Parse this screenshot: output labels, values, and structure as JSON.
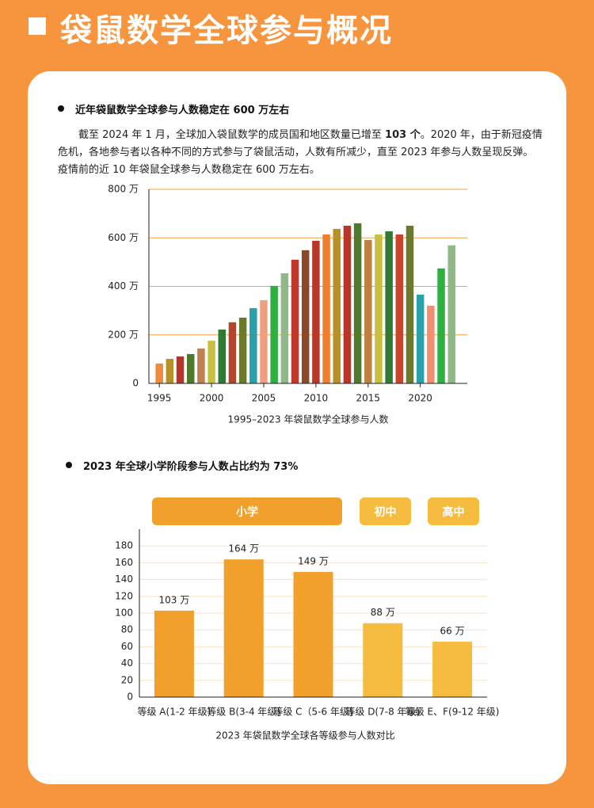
{
  "header": {
    "title": "袋鼠数学全球参与概况"
  },
  "section1": {
    "heading": "近年袋鼠数学全球参与人数稳定在 600 万左右",
    "paragraph": [
      "截至 2024 年 1 月，全球加入袋鼠数学的成员国和地区数量已增至 ",
      "103 个",
      "。2020 年，由于新冠疫情危机，各地参与者以各种不同的方式参与了袋鼠活动，人数有所减少，直至 2023 年参与人数呈现反弹。疫情前的近 10 年袋鼠全球参与人数稳定在 600 万左右。"
    ]
  },
  "section2": {
    "heading": "2023 年全球小学阶段参与人数占比约为 73%",
    "groups": [
      "小学",
      "初中",
      "高中"
    ]
  },
  "chart_data": [
    {
      "type": "bar",
      "caption": "1995–2023 年袋鼠数学全球参与人数",
      "x": [
        1995,
        1996,
        1997,
        1998,
        1999,
        2000,
        2001,
        2002,
        2003,
        2004,
        2005,
        2006,
        2007,
        2008,
        2009,
        2010,
        2011,
        2012,
        2013,
        2014,
        2015,
        2016,
        2017,
        2018,
        2019,
        2020,
        2021,
        2022,
        2023
      ],
      "values": [
        82,
        101,
        111,
        121,
        144,
        176,
        222,
        252,
        271,
        310,
        343,
        402,
        454,
        510,
        549,
        588,
        614,
        637,
        650,
        660,
        591,
        614,
        627,
        614,
        650,
        366,
        320,
        474,
        569
      ],
      "colors": [
        "#f08a3c",
        "#b8902a",
        "#b5352a",
        "#4f7a2e",
        "#c08050",
        "#c8c040",
        "#2f7a35",
        "#b4442c",
        "#6a7a2a",
        "#2aa0a8",
        "#f0a080",
        "#2db040",
        "#90b888",
        "#c0382a",
        "#8a4a28",
        "#b8392a",
        "#f08030",
        "#b8902a",
        "#b8352a",
        "#4f7a2e",
        "#c08040",
        "#c8c040",
        "#2f7a35",
        "#c8442c",
        "#6a7a2a",
        "#2aa0a8",
        "#f09070",
        "#2db040",
        "#90b888"
      ],
      "xlim": [
        1994,
        2024.5
      ],
      "xticks": [
        1995,
        2000,
        2005,
        2010,
        2015,
        2020
      ],
      "ylim": [
        0,
        800
      ],
      "yticks": [
        0,
        {
          "value": 200,
          "label": "200 万"
        },
        {
          "value": 400,
          "label": "400 万"
        },
        {
          "value": 600,
          "label": "600 万"
        },
        {
          "value": 800,
          "label": "800 万"
        }
      ],
      "grid": true,
      "grid_color": "#f2a03d"
    },
    {
      "type": "bar",
      "caption": "2023 年袋鼠数学全球各等级参与人数对比",
      "categories": [
        "等级 A(1-2 年级)",
        "等级 B(3-4 年级)",
        "等级 C（5-6 年级)",
        "等级 D(7-8 年级)",
        "等级 E、F(9-12 年级)"
      ],
      "values": [
        103,
        164,
        149,
        88,
        66
      ],
      "value_labels": [
        "103 万",
        "164 万",
        "149 万",
        "88 万",
        "66 万"
      ],
      "colors": [
        "#f2a02c",
        "#f2a02c",
        "#f2a02c",
        "#f5bc40",
        "#f5bc40"
      ],
      "ylim": [
        0,
        200
      ],
      "yticks": [
        0,
        20,
        40,
        60,
        80,
        100,
        120,
        140,
        160,
        180
      ],
      "grid": true,
      "grid_color": "#f9e3c5"
    }
  ]
}
